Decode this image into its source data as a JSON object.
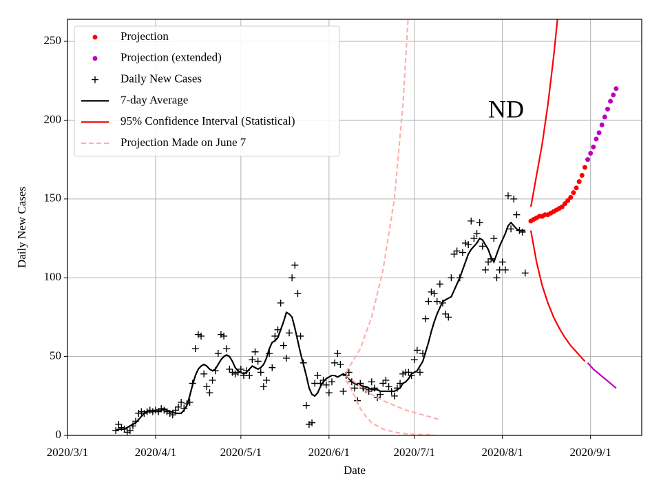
{
  "chart_data": {
    "type": "line",
    "annotation": "ND",
    "xlabel": "Date",
    "ylabel": "Daily New Cases",
    "xlim": [
      "2020/3/1",
      "2020/9/19"
    ],
    "xticks": [
      "2020/3/1",
      "2020/4/1",
      "2020/5/1",
      "2020/6/1",
      "2020/7/1",
      "2020/8/1",
      "2020/9/1"
    ],
    "ylim": [
      0,
      264
    ],
    "yticks": [
      0,
      50,
      100,
      150,
      200,
      250
    ],
    "grid": true,
    "legend": "upper left",
    "x": [
      "2020/3/18",
      "2020/3/19",
      "2020/3/20",
      "2020/3/21",
      "2020/3/22",
      "2020/3/23",
      "2020/3/24",
      "2020/3/25",
      "2020/3/26",
      "2020/3/27",
      "2020/3/28",
      "2020/3/29",
      "2020/3/30",
      "2020/3/31",
      "2020/4/1",
      "2020/4/2",
      "2020/4/3",
      "2020/4/4",
      "2020/4/5",
      "2020/4/6",
      "2020/4/7",
      "2020/4/8",
      "2020/4/9",
      "2020/4/10",
      "2020/4/11",
      "2020/4/12",
      "2020/4/13",
      "2020/4/14",
      "2020/4/15",
      "2020/4/16",
      "2020/4/17",
      "2020/4/18",
      "2020/4/19",
      "2020/4/20",
      "2020/4/21",
      "2020/4/22",
      "2020/4/23",
      "2020/4/24",
      "2020/4/25",
      "2020/4/26",
      "2020/4/27",
      "2020/4/28",
      "2020/4/29",
      "2020/4/30",
      "2020/5/1",
      "2020/5/2",
      "2020/5/3",
      "2020/5/4",
      "2020/5/5",
      "2020/5/6",
      "2020/5/7",
      "2020/5/8",
      "2020/5/9",
      "2020/5/10",
      "2020/5/11",
      "2020/5/12",
      "2020/5/13",
      "2020/5/14",
      "2020/5/15",
      "2020/5/16",
      "2020/5/17",
      "2020/5/18",
      "2020/5/19",
      "2020/5/20",
      "2020/5/21",
      "2020/5/22",
      "2020/5/23",
      "2020/5/24",
      "2020/5/25",
      "2020/5/26",
      "2020/5/27",
      "2020/5/28",
      "2020/5/29",
      "2020/5/30",
      "2020/5/31",
      "2020/6/1",
      "2020/6/2",
      "2020/6/3",
      "2020/6/4",
      "2020/6/5",
      "2020/6/6",
      "2020/6/7",
      "2020/6/8",
      "2020/6/9",
      "2020/6/10",
      "2020/6/11",
      "2020/6/12",
      "2020/6/13",
      "2020/6/14",
      "2020/6/15",
      "2020/6/16",
      "2020/6/17",
      "2020/6/18",
      "2020/6/19",
      "2020/6/20",
      "2020/6/21",
      "2020/6/22",
      "2020/6/23",
      "2020/6/24",
      "2020/6/25",
      "2020/6/26",
      "2020/6/27",
      "2020/6/28",
      "2020/6/29",
      "2020/6/30",
      "2020/7/1",
      "2020/7/2",
      "2020/7/3",
      "2020/7/4",
      "2020/7/5",
      "2020/7/6",
      "2020/7/7",
      "2020/7/8",
      "2020/7/9",
      "2020/7/10",
      "2020/7/11",
      "2020/7/12",
      "2020/7/13",
      "2020/7/14",
      "2020/7/15",
      "2020/7/16",
      "2020/7/17",
      "2020/7/18",
      "2020/7/19",
      "2020/7/20",
      "2020/7/21",
      "2020/7/22",
      "2020/7/23",
      "2020/7/24",
      "2020/7/25",
      "2020/7/26",
      "2020/7/27",
      "2020/7/28",
      "2020/7/29",
      "2020/7/30",
      "2020/7/31",
      "2020/8/1",
      "2020/8/2",
      "2020/8/3",
      "2020/8/4",
      "2020/8/5",
      "2020/8/6",
      "2020/8/7",
      "2020/8/8",
      "2020/8/9"
    ],
    "series": [
      {
        "name": "Projection",
        "mark": "dot",
        "color": "#ff0000",
        "x": [
          "2020/8/11",
          "2020/8/12",
          "2020/8/13",
          "2020/8/14",
          "2020/8/15",
          "2020/8/16",
          "2020/8/17",
          "2020/8/18",
          "2020/8/19",
          "2020/8/20",
          "2020/8/21",
          "2020/8/22",
          "2020/8/23",
          "2020/8/24",
          "2020/8/25",
          "2020/8/26",
          "2020/8/27",
          "2020/8/28",
          "2020/8/29",
          "2020/8/30"
        ],
        "values": [
          136,
          137,
          138,
          139,
          139,
          140,
          140,
          141,
          142,
          143,
          144,
          145,
          147,
          149,
          151,
          154,
          157,
          161,
          165,
          170
        ]
      },
      {
        "name": "Projection (extended)",
        "mark": "dot",
        "color": "#bf00bf",
        "x": [
          "2020/8/31",
          "2020/9/1",
          "2020/9/2",
          "2020/9/3",
          "2020/9/4",
          "2020/9/5",
          "2020/9/6",
          "2020/9/7",
          "2020/9/8",
          "2020/9/9",
          "2020/9/10"
        ],
        "values": [
          175,
          179,
          183,
          188,
          192,
          197,
          202,
          207,
          212,
          216,
          220
        ]
      },
      {
        "name": "Daily New Cases",
        "mark": "plus",
        "color": "#000000",
        "values": [
          3,
          7,
          5,
          4,
          2,
          3,
          6,
          9,
          14,
          15,
          14,
          15,
          16,
          15,
          16,
          15,
          17,
          16,
          15,
          14,
          13,
          16,
          18,
          21,
          17,
          20,
          21,
          33,
          55,
          64,
          63,
          39,
          31,
          27,
          35,
          41,
          52,
          64,
          63,
          55,
          42,
          40,
          39,
          40,
          42,
          38,
          41,
          38,
          48,
          53,
          47,
          40,
          31,
          35,
          52,
          43,
          63,
          67,
          84,
          57,
          49,
          65,
          100,
          108,
          90,
          63,
          46,
          19,
          7,
          8,
          33,
          38,
          33,
          35,
          32,
          27,
          34,
          46,
          52,
          45,
          28,
          38,
          40,
          34,
          30,
          22,
          33,
          30,
          29,
          28,
          34,
          30,
          24,
          26,
          33,
          35,
          31,
          28,
          25,
          30,
          33,
          39,
          40,
          40,
          38,
          48,
          54,
          40,
          52,
          74,
          85,
          91,
          90,
          85,
          96,
          84,
          77,
          75,
          100,
          115,
          117,
          100,
          116,
          122,
          121,
          136,
          125,
          128,
          135,
          120,
          105,
          110,
          112,
          125,
          100,
          105,
          110,
          105,
          152,
          131,
          150,
          140,
          130,
          129,
          103
        ]
      },
      {
        "name": "7-day Average",
        "mark": "line",
        "color": "#000000",
        "values": [
          3,
          4,
          4,
          4,
          5,
          6,
          7,
          8,
          10,
          12,
          14,
          15,
          15,
          15,
          16,
          16,
          16,
          17,
          16,
          15,
          15,
          14,
          14,
          14,
          16,
          19,
          25,
          32,
          38,
          42,
          44,
          45,
          44,
          42,
          41,
          42,
          45,
          48,
          50,
          51,
          50,
          47,
          43,
          41,
          40,
          39,
          40,
          42,
          44,
          43,
          42,
          43,
          45,
          49,
          55,
          59,
          60,
          62,
          67,
          72,
          78,
          77,
          75,
          68,
          60,
          52,
          45,
          38,
          30,
          26,
          25,
          27,
          31,
          34,
          36,
          37,
          38,
          38,
          37,
          38,
          39,
          38,
          36,
          34,
          33,
          32,
          32,
          31,
          31,
          30,
          29,
          29,
          29,
          28,
          28,
          28,
          28,
          28,
          28,
          29,
          30,
          33,
          34,
          36,
          39,
          40,
          41,
          44,
          47,
          53,
          59,
          66,
          72,
          77,
          81,
          85,
          86,
          87,
          88,
          92,
          96,
          100,
          105,
          110,
          115,
          118,
          120,
          122,
          125,
          124,
          121,
          118,
          113,
          110,
          115,
          120,
          124,
          128,
          133,
          135,
          133,
          131,
          130,
          130,
          130
        ]
      },
      {
        "name": "95% Confidence Interval (Statistical)",
        "mark": "line",
        "color": "#ff0000",
        "x": [
          "2020/8/11",
          "2020/8/13",
          "2020/8/15",
          "2020/8/17",
          "2020/8/19",
          "2020/8/21"
        ],
        "values": [
          145,
          165,
          185,
          210,
          240,
          275
        ]
      },
      {
        "mark": "line",
        "color": "#ff0000",
        "x": [
          "2020/8/11",
          "2020/8/13",
          "2020/8/15",
          "2020/8/17",
          "2020/8/19",
          "2020/8/21",
          "2020/8/23",
          "2020/8/25",
          "2020/8/27",
          "2020/8/29",
          "2020/8/30"
        ],
        "values": [
          130,
          110,
          95,
          84,
          75,
          68,
          62,
          57,
          53,
          49,
          47
        ]
      },
      {
        "mark": "line",
        "color": "#bf00bf",
        "x": [
          "2020/8/31",
          "2020/9/2",
          "2020/9/4",
          "2020/9/6",
          "2020/9/8",
          "2020/9/10"
        ],
        "values": [
          46,
          42,
          39,
          36,
          33,
          30
        ]
      },
      {
        "name": "Projection Made on June 7",
        "mark": "line",
        "dashed": true,
        "color": "#ffb0b0",
        "x": [
          "2020/6/7",
          "2020/6/12",
          "2020/6/16",
          "2020/6/20",
          "2020/6/24",
          "2020/6/27",
          "2020/6/29"
        ],
        "values": [
          40,
          55,
          75,
          105,
          150,
          210,
          270
        ]
      },
      {
        "mark": "line",
        "dashed": true,
        "color": "#ffb0b0",
        "x": [
          "2020/6/7",
          "2020/6/12",
          "2020/6/16",
          "2020/6/20",
          "2020/6/24",
          "2020/6/28",
          "2020/7/2",
          "2020/7/6",
          "2020/7/10"
        ],
        "values": [
          38,
          31,
          26,
          22,
          19,
          16,
          14,
          12,
          10
        ]
      },
      {
        "mark": "line",
        "dashed": true,
        "color": "#ffb0b0",
        "x": [
          "2020/6/7",
          "2020/6/10",
          "2020/6/12",
          "2020/6/14",
          "2020/6/16",
          "2020/6/20",
          "2020/6/24",
          "2020/6/28",
          "2020/7/2",
          "2020/7/8"
        ],
        "values": [
          35,
          25,
          17,
          12,
          8,
          4,
          2,
          1,
          0.5,
          0.3
        ]
      }
    ]
  }
}
